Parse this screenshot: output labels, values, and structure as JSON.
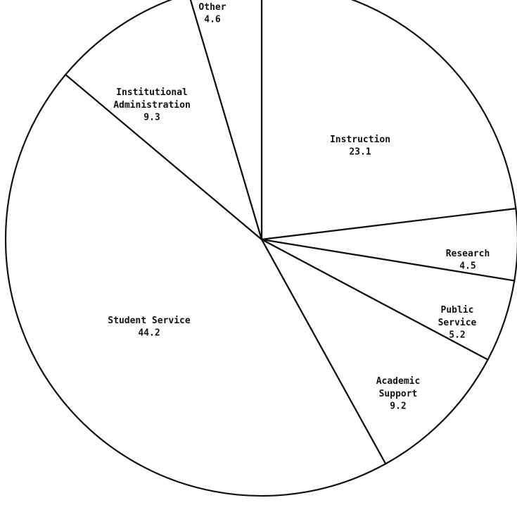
{
  "chart_data": {
    "type": "pie",
    "categories": [
      "Instruction",
      "Research",
      "Public Service",
      "Academic Support",
      "Student Service",
      "Institutional Administration",
      "Other"
    ],
    "values": [
      23.1,
      4.5,
      5.2,
      9.2,
      44.2,
      9.3,
      4.6
    ],
    "color": "#ffffff"
  }
}
